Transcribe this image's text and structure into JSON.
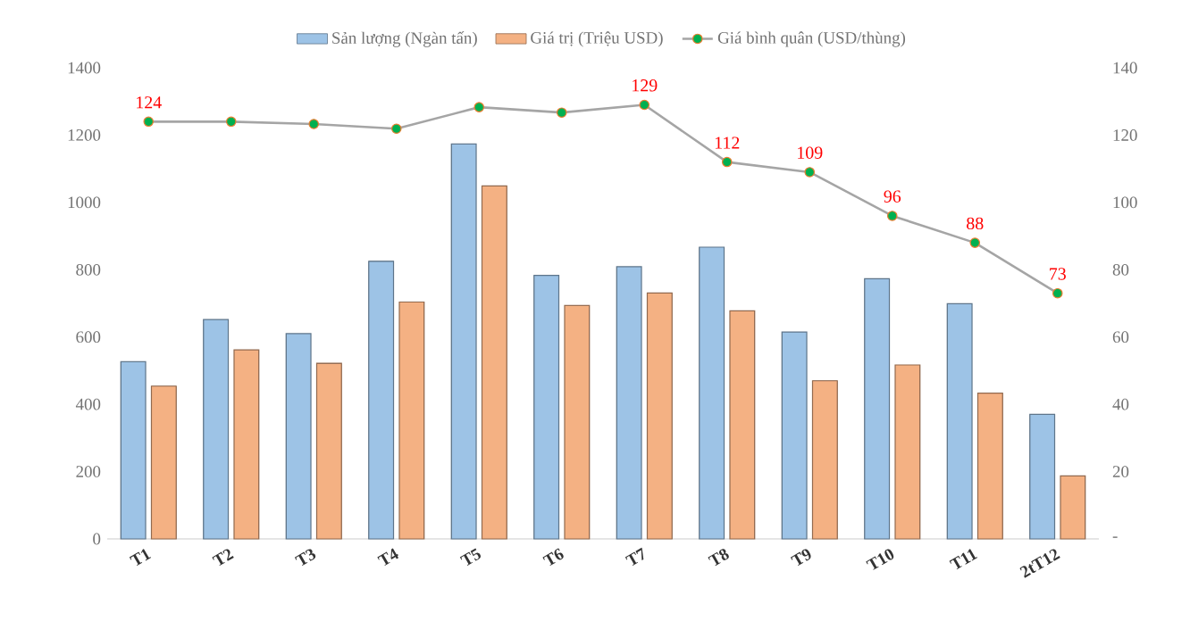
{
  "chart_data": {
    "type": "bar",
    "categories": [
      "T1",
      "T2",
      "T3",
      "T4",
      "T5",
      "T6",
      "T7",
      "T8",
      "T9",
      "T10",
      "T11",
      "2tT12"
    ],
    "series": [
      {
        "name": "Sản lượng (Ngàn tấn)",
        "color": "#9dc3e6",
        "values": [
          527,
          652,
          610,
          825,
          1174,
          783,
          809,
          867,
          615,
          773,
          699,
          370
        ]
      },
      {
        "name": "Giá trị (Triệu USD)",
        "color": "#f4b183",
        "values": [
          454,
          562,
          522,
          704,
          1049,
          694,
          731,
          678,
          470,
          517,
          433,
          187
        ]
      },
      {
        "name": "Giá bình quân (USD/thùng)",
        "type": "line",
        "axis": "y2",
        "color": "#a5a5a5",
        "marker": "circle",
        "values": [
          124,
          124.0,
          123.3,
          121.9,
          128.3,
          126.7,
          129,
          112,
          109,
          96,
          88,
          73
        ],
        "value_labels": [
          "124",
          null,
          null,
          null,
          null,
          null,
          "129",
          "112",
          "109",
          "96",
          "88",
          "73"
        ]
      }
    ],
    "ylim": [
      0,
      1400
    ],
    "yticks": [
      0,
      200,
      400,
      600,
      800,
      1000,
      1200,
      1400
    ],
    "y2lim": [
      0,
      140
    ],
    "y2ticks": [
      {
        "value": 0,
        "label": "-"
      },
      20,
      40,
      60,
      80,
      100,
      120,
      140
    ],
    "grid": false,
    "legend": "top"
  }
}
